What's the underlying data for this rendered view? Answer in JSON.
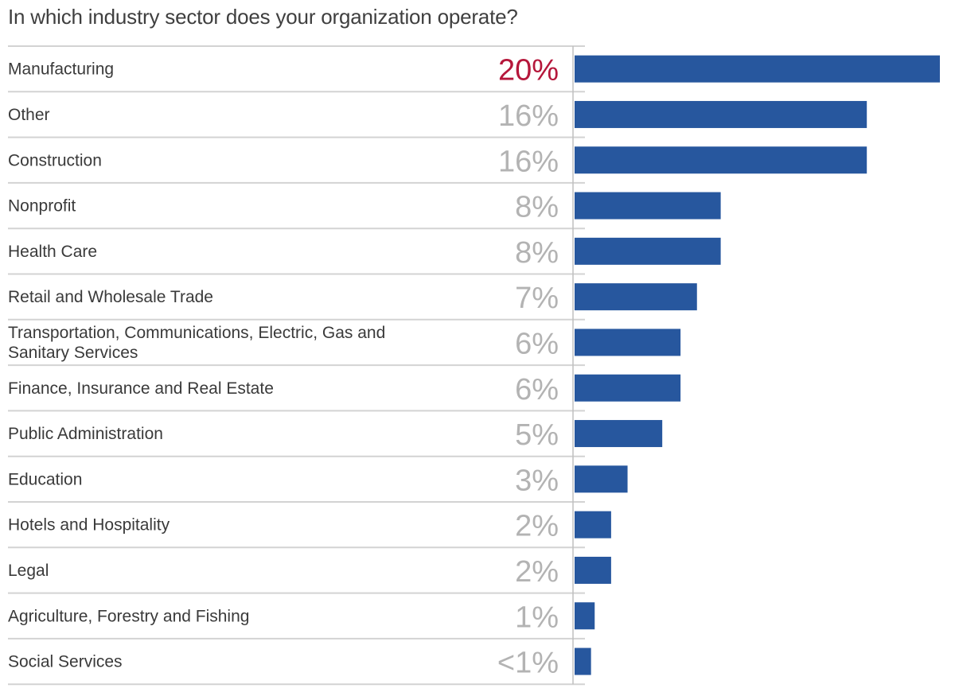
{
  "chart_data": {
    "type": "bar",
    "orientation": "horizontal",
    "title": "In which industry sector does your organization operate?",
    "categories": [
      "Manufacturing",
      "Other",
      "Construction",
      "Nonprofit",
      "Health Care",
      "Retail and Wholesale Trade",
      "Transportation, Communications, Electric, Gas and Sanitary Services",
      "Finance, Insurance and Real Estate",
      "Public Administration",
      "Education",
      "Hotels and Hospitality",
      "Legal",
      "Agriculture, Forestry and Fishing",
      "Social Services"
    ],
    "category_lines": [
      [
        "Manufacturing"
      ],
      [
        "Other"
      ],
      [
        "Construction"
      ],
      [
        "Nonprofit"
      ],
      [
        "Health Care"
      ],
      [
        "Retail and Wholesale Trade"
      ],
      [
        "Transportation, Communications, Electric, Gas and",
        "Sanitary Services"
      ],
      [
        "Finance, Insurance and Real Estate"
      ],
      [
        "Public Administration"
      ],
      [
        "Education"
      ],
      [
        "Hotels and Hospitality"
      ],
      [
        "Legal"
      ],
      [
        "Agriculture, Forestry and Fishing"
      ],
      [
        "Social Services"
      ]
    ],
    "values": [
      20,
      16,
      16,
      8,
      8,
      6.7,
      5.8,
      5.8,
      4.8,
      2.9,
      2,
      2,
      1.1,
      0.9
    ],
    "value_labels": [
      "20%",
      "16%",
      "16%",
      "8%",
      "8%",
      "7%",
      "6%",
      "6%",
      "5%",
      "3%",
      "2%",
      "2%",
      "1%",
      "<1%"
    ],
    "xlim": [
      0,
      20
    ],
    "colors": {
      "bar": "#27579e",
      "label_default": "#b3b3b3",
      "label_highlight": "#b5173b"
    },
    "highlight_index": 0,
    "grid": false,
    "legend": "none"
  }
}
